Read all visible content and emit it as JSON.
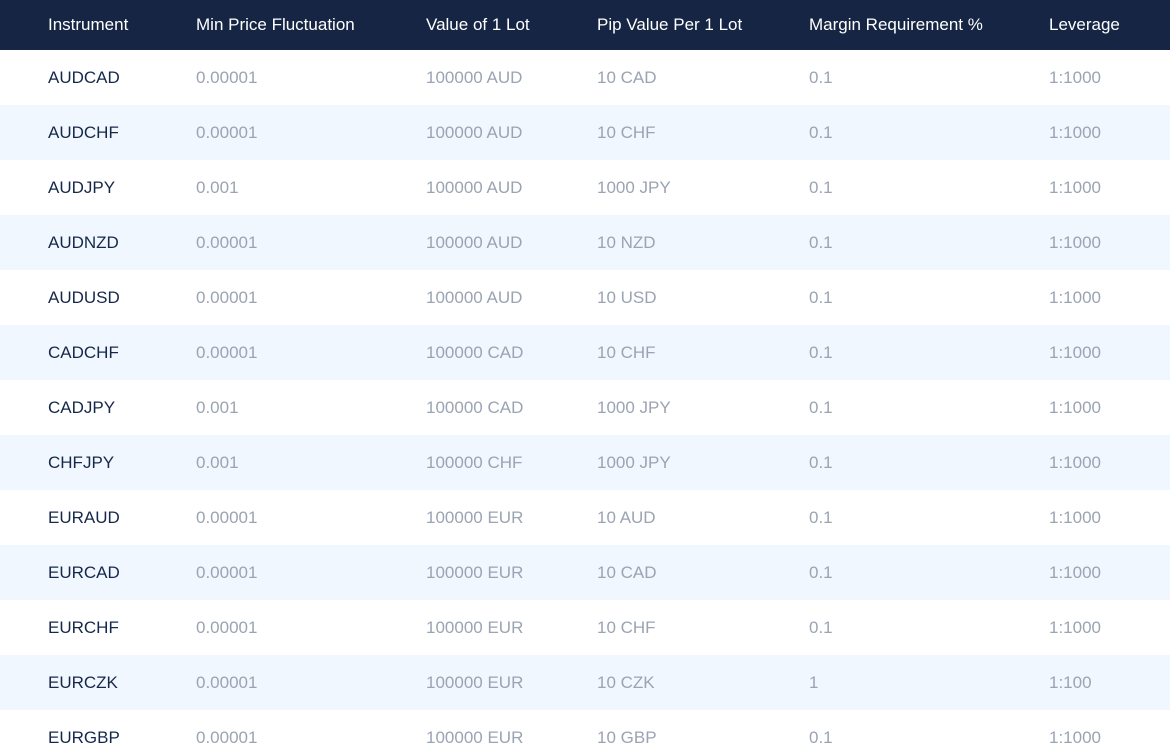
{
  "table": {
    "headers": [
      "Instrument",
      "Min Price Fluctuation",
      "Value of 1 Lot",
      "Pip Value Per 1 Lot",
      "Margin Requirement %",
      "Leverage"
    ],
    "rows": [
      [
        "AUDCAD",
        "0.00001",
        "100000 AUD",
        "10 CAD",
        "0.1",
        "1:1000"
      ],
      [
        "AUDCHF",
        "0.00001",
        "100000 AUD",
        "10 CHF",
        "0.1",
        "1:1000"
      ],
      [
        "AUDJPY",
        "0.001",
        "100000 AUD",
        "1000 JPY",
        "0.1",
        "1:1000"
      ],
      [
        "AUDNZD",
        "0.00001",
        "100000 AUD",
        "10 NZD",
        "0.1",
        "1:1000"
      ],
      [
        "AUDUSD",
        "0.00001",
        "100000 AUD",
        "10 USD",
        "0.1",
        "1:1000"
      ],
      [
        "CADCHF",
        "0.00001",
        "100000 CAD",
        "10 CHF",
        "0.1",
        "1:1000"
      ],
      [
        "CADJPY",
        "0.001",
        "100000 CAD",
        "1000 JPY",
        "0.1",
        "1:1000"
      ],
      [
        "CHFJPY",
        "0.001",
        "100000 CHF",
        "1000 JPY",
        "0.1",
        "1:1000"
      ],
      [
        "EURAUD",
        "0.00001",
        "100000 EUR",
        "10 AUD",
        "0.1",
        "1:1000"
      ],
      [
        "EURCAD",
        "0.00001",
        "100000 EUR",
        "10 CAD",
        "0.1",
        "1:1000"
      ],
      [
        "EURCHF",
        "0.00001",
        "100000 EUR",
        "10 CHF",
        "0.1",
        "1:1000"
      ],
      [
        "EURCZK",
        "0.00001",
        "100000 EUR",
        "10 CZK",
        "1",
        "1:100"
      ],
      [
        "EURGBP",
        "0.00001",
        "100000 EUR",
        "10 GBP",
        "0.1",
        "1:1000"
      ]
    ]
  }
}
